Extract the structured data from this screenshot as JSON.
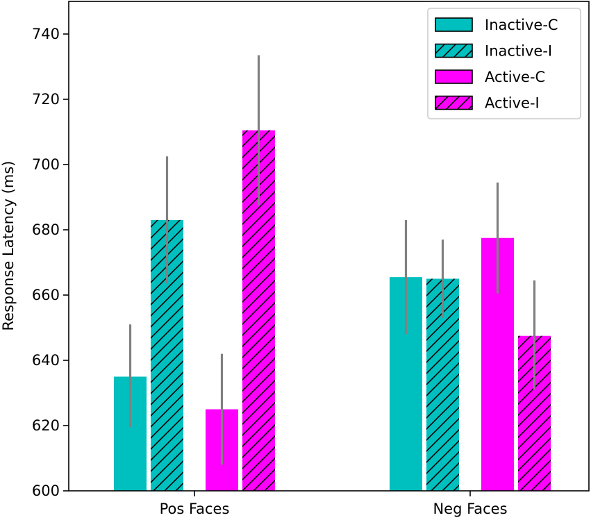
{
  "chart_data": {
    "type": "bar",
    "title": "",
    "xlabel": "",
    "ylabel": "Response Latency (ms)",
    "ylim": [
      600,
      750
    ],
    "yticks": [
      600,
      620,
      640,
      660,
      680,
      700,
      720,
      740
    ],
    "categories": [
      "Pos Faces",
      "Neg Faces"
    ],
    "series": [
      {
        "name": "Inactive-C",
        "color": "#00BFBF",
        "hatch": false,
        "values": [
          635,
          665.5
        ],
        "error_low": [
          619.5,
          648
        ],
        "error_high": [
          651,
          683
        ]
      },
      {
        "name": "Inactive-I",
        "color": "#00BFBF",
        "hatch": true,
        "values": [
          683,
          665
        ],
        "error_low": [
          663.5,
          653
        ],
        "error_high": [
          702.5,
          677
        ]
      },
      {
        "name": "Active-C",
        "color": "#FF00FF",
        "hatch": false,
        "values": [
          625,
          677.5
        ],
        "error_low": [
          608,
          660.5
        ],
        "error_high": [
          642,
          694.5
        ]
      },
      {
        "name": "Active-I",
        "color": "#FF00FF",
        "hatch": true,
        "values": [
          710.5,
          647.5
        ],
        "error_low": [
          687.5,
          631
        ],
        "error_high": [
          733.5,
          664.5
        ]
      }
    ],
    "error_bar_color": "#808080",
    "grid": false,
    "legend_position": "top-right"
  }
}
